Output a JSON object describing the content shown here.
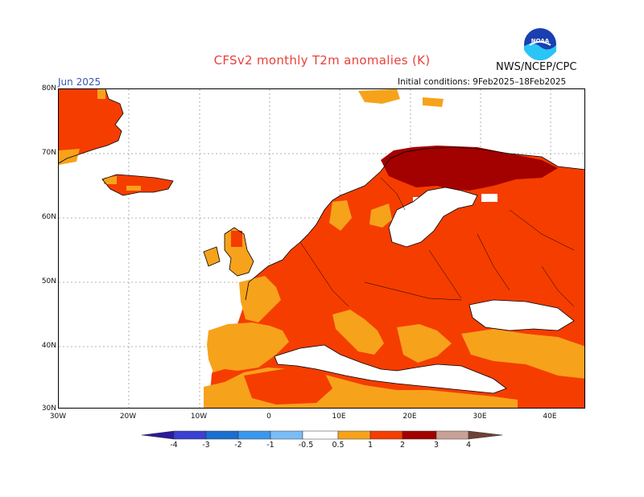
{
  "header": {
    "title": "CFSv2 monthly T2m anomalies (K)",
    "agency": "NWS/NCEP/CPC",
    "logo_text": "NOAA",
    "month": "Jun 2025",
    "initial_conditions": "Initial conditions: 9Feb2025–18Feb2025"
  },
  "map": {
    "projection": "lat-lon",
    "lon_range": [
      -30,
      45
    ],
    "lat_range": [
      30,
      80
    ],
    "lat_ticks": [
      "80N",
      "70N",
      "60N",
      "50N",
      "40N",
      "30N"
    ],
    "lon_ticks": [
      "30W",
      "20W",
      "10W",
      "0",
      "10E",
      "20E",
      "30E",
      "40E"
    ],
    "grid": "dotted"
  },
  "legend": {
    "labels": [
      "-4",
      "-3",
      "-2",
      "-1",
      "-0.5",
      "0.5",
      "1",
      "2",
      "3",
      "4"
    ],
    "colors": [
      "#2a1a9e",
      "#3b3fd2",
      "#1a6fd0",
      "#3a97ee",
      "#79bdf7",
      "#ffffff",
      "#f7a21b",
      "#f53d00",
      "#a30000",
      "#c9a196",
      "#6e4136"
    ]
  },
  "anomaly_regions": [
    {
      "name": "Greenland east coast",
      "category": "1-2",
      "color": "#f53d00"
    },
    {
      "name": "Iceland",
      "category": "1-2",
      "color": "#f53d00"
    },
    {
      "name": "Northern Scandinavia",
      "category": "2-3",
      "color": "#a30000"
    },
    {
      "name": "Eastern Europe",
      "category": "1-2",
      "color": "#f53d00"
    },
    {
      "name": "Iberia",
      "category": "0.5-1",
      "color": "#f7a21b"
    },
    {
      "name": "North Africa",
      "category": "1-2",
      "color": "#f53d00"
    },
    {
      "name": "Turkey",
      "category": "0.5-1",
      "color": "#f7a21b"
    }
  ]
}
